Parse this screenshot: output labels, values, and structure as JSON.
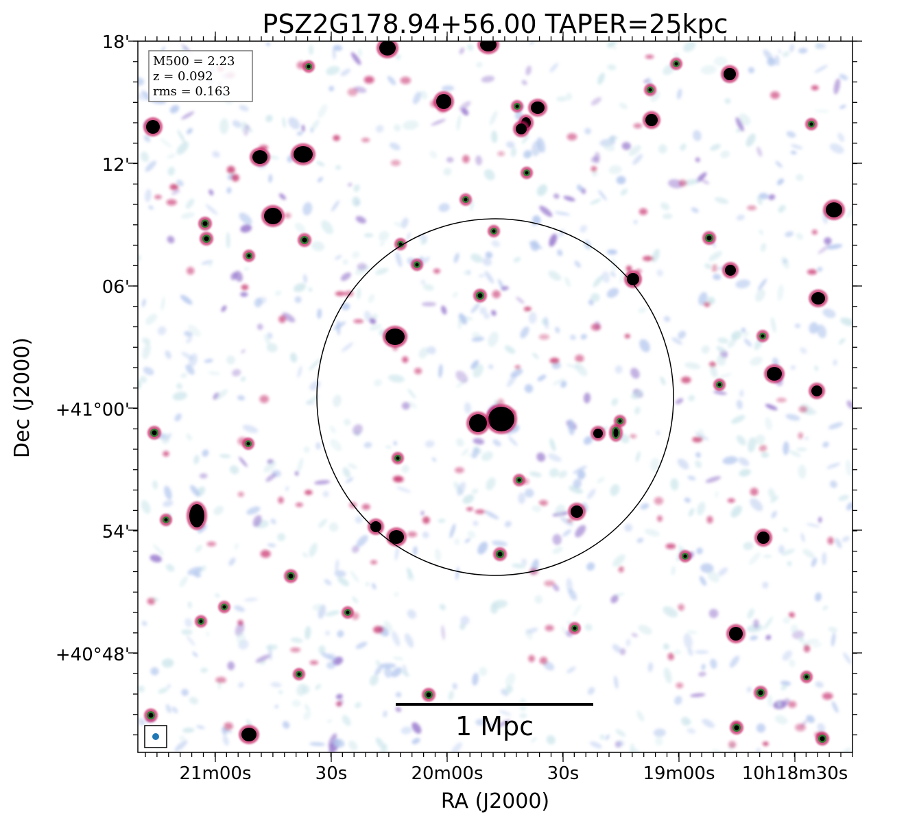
{
  "chart_data": {
    "type": "radio-continuum-map",
    "title": "PSZ2G178.94+56.00 TAPER=25kpc",
    "xlabel": "RA (J2000)",
    "ylabel": "Dec (J2000)",
    "x_tick_labels": [
      "21m00s",
      "30s",
      "20m00s",
      "30s",
      "19m00s",
      "10h18m30s"
    ],
    "y_tick_labels": [
      "18'",
      "12'",
      "06'",
      "+41°00'",
      "54'",
      "+40°48'"
    ],
    "annotations": {
      "m500": "M500 = 2.23",
      "z": "z = 0.092",
      "rms": "rms = 0.163"
    },
    "scale_bar_label": "1 Mpc",
    "colors": {
      "compact_source": "#000000",
      "source_halo": "#c2185b",
      "emission_mid": "#9575cd",
      "emission_low": "#b3c7ee",
      "noise_faint": "#cfe7ec",
      "beam": "#1f77b4",
      "frame": "#000000"
    }
  }
}
